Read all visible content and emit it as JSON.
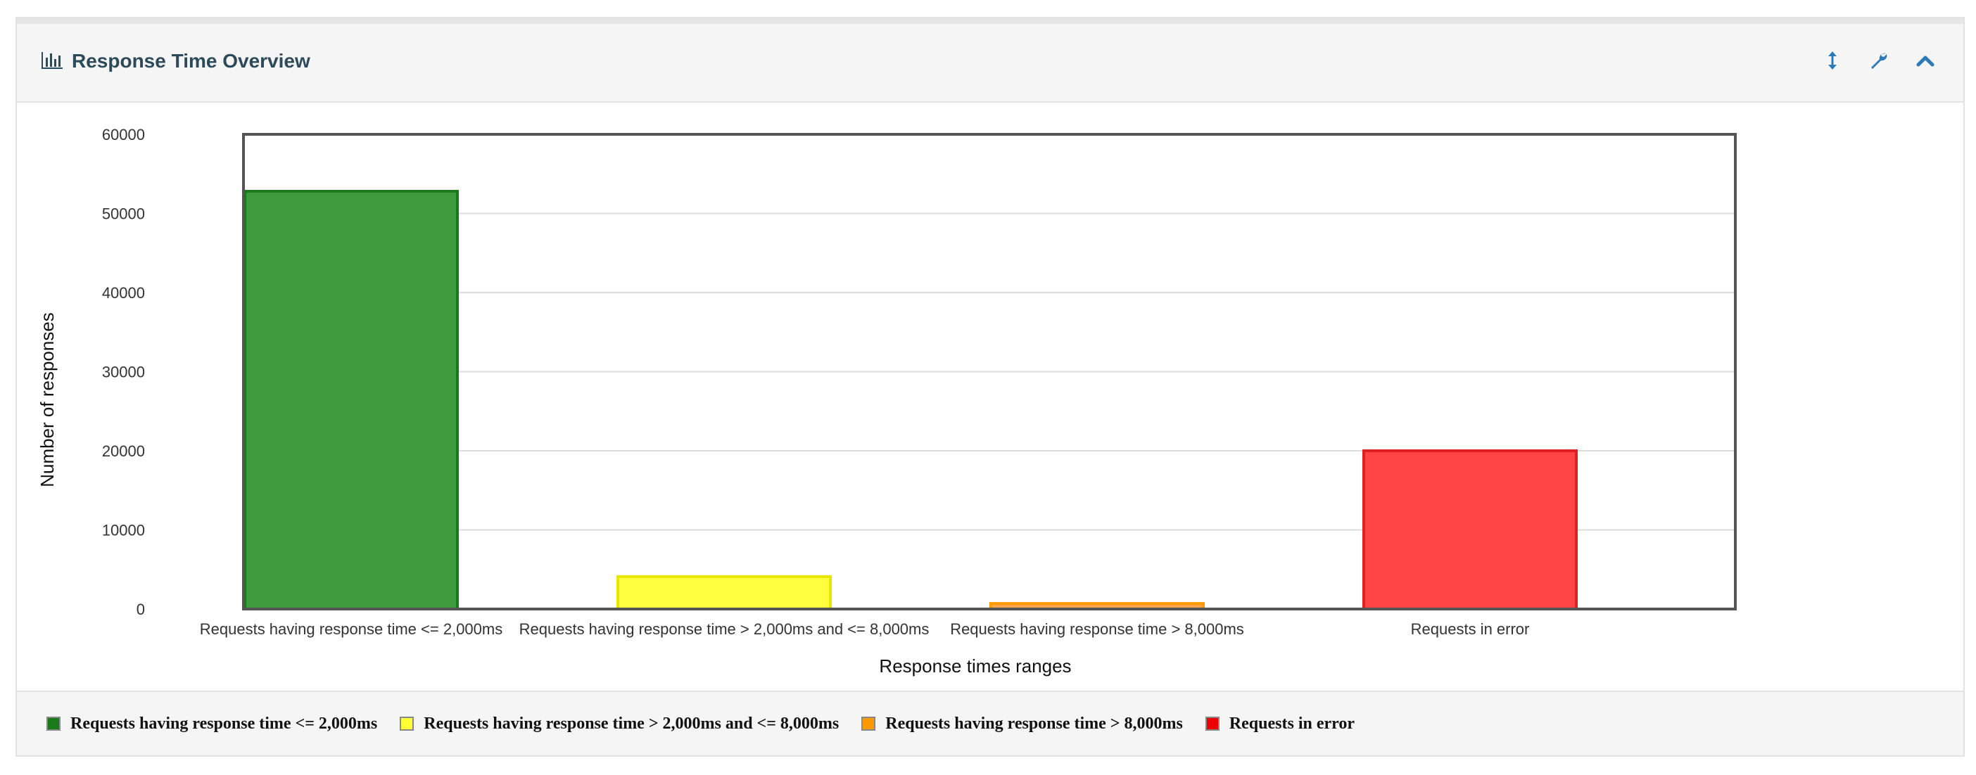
{
  "panel": {
    "title": "Response Time Overview",
    "icons": [
      "bar-chart-icon",
      "resize-vertical-icon",
      "wrench-icon",
      "chevron-up-icon"
    ],
    "accent_color": "#2c7ab8"
  },
  "chart_data": {
    "type": "bar",
    "title": "",
    "xlabel": "Response times ranges",
    "ylabel": "Number of responses",
    "ylim": [
      0,
      60000
    ],
    "yticks": [
      "0",
      "10000",
      "20000",
      "30000",
      "40000",
      "50000",
      "60000"
    ],
    "grid": true,
    "legend_position": "bottom",
    "categories": [
      "Requests having response time <= 2,000ms",
      "Requests having response time > 2,000ms and <= 8,000ms",
      "Requests having response time > 8,000ms",
      "Requests in error"
    ],
    "series": [
      {
        "name": "Requests having response time <= 2,000ms",
        "values": [
          52800,
          0,
          0,
          0
        ],
        "color": "#3d9a3d",
        "border": "#1a7a1a"
      },
      {
        "name": "Requests having response time > 2,000ms and <= 8,000ms",
        "values": [
          0,
          4100,
          0,
          0
        ],
        "color": "#ffff40",
        "border": "#e6e600"
      },
      {
        "name": "Requests having response time > 8,000ms",
        "values": [
          0,
          0,
          700,
          0
        ],
        "color": "#ffa64d",
        "border": "#ff9900"
      },
      {
        "name": "Requests in error",
        "values": [
          0,
          0,
          0,
          20000
        ],
        "color": "#ff4444",
        "border": "#e02020"
      }
    ]
  },
  "legend": {
    "items": [
      {
        "label": "Requests having response time <= 2,000ms",
        "color": "#1a7a1a"
      },
      {
        "label": "Requests having response time > 2,000ms and <= 8,000ms",
        "color": "#ffff33"
      },
      {
        "label": "Requests having response time > 8,000ms",
        "color": "#ff9900"
      },
      {
        "label": "Requests in error",
        "color": "#ee0000"
      }
    ]
  }
}
